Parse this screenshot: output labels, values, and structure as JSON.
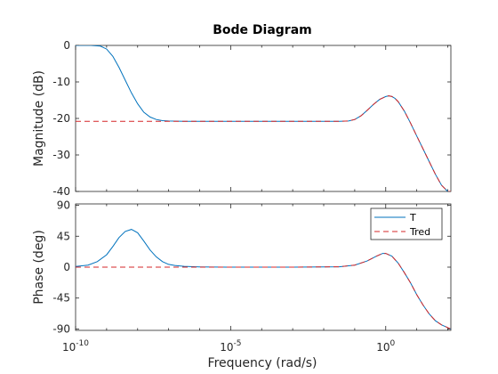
{
  "chart_data": {
    "type": "line",
    "title": "Bode Diagram",
    "xlabel": "Frequency  (rad/s)",
    "xscale": "log",
    "xlim_exp": [
      -10,
      2.1
    ],
    "x_ticks": [
      {
        "exp": -10,
        "base": "10",
        "sup": "-10"
      },
      {
        "exp": -5,
        "base": "10",
        "sup": "-5"
      },
      {
        "exp": 0,
        "base": "10",
        "sup": "0"
      }
    ],
    "legend": {
      "placement": "top-right",
      "entries": [
        "T",
        "Tred"
      ]
    },
    "grid": false,
    "colors": {
      "T": "#0072BD",
      "Tred": "#D62728"
    },
    "panels": [
      {
        "id": "magnitude",
        "ylabel": "Magnitude (dB)",
        "ylim": [
          -40,
          0
        ],
        "yticks": [
          0,
          -10,
          -20,
          -30,
          -40
        ],
        "series": [
          {
            "name": "T",
            "style": "solid",
            "x_exp": [
              -10,
              -9.5,
              -9.2,
              -9.0,
              -8.8,
              -8.6,
              -8.4,
              -8.2,
              -8.0,
              -7.8,
              -7.6,
              -7.4,
              -7.2,
              -7.0,
              -6.5,
              -5.0,
              -3.0,
              -1.5,
              -1.2,
              -1.0,
              -0.8,
              -0.6,
              -0.4,
              -0.2,
              0.0,
              0.1,
              0.2,
              0.3,
              0.4,
              0.6,
              0.8,
              1.0,
              1.2,
              1.4,
              1.6,
              1.8,
              2.0,
              2.1
            ],
            "y": [
              0,
              0,
              -0.2,
              -1.0,
              -3.0,
              -6.0,
              -9.5,
              -13.0,
              -16.0,
              -18.3,
              -19.6,
              -20.3,
              -20.6,
              -20.7,
              -20.8,
              -20.8,
              -20.8,
              -20.8,
              -20.7,
              -20.3,
              -19.3,
              -17.8,
              -16.2,
              -14.8,
              -14.0,
              -13.8,
              -14.0,
              -14.5,
              -15.4,
              -18.0,
              -21.3,
              -24.8,
              -28.3,
              -31.8,
              -35.3,
              -38.3,
              -40.0,
              -40.0
            ]
          },
          {
            "name": "Tred",
            "style": "dashed",
            "x_exp": [
              -10,
              -9.0,
              -8.0,
              -7.0,
              -5.0,
              -3.0,
              -1.5,
              -1.2,
              -1.0,
              -0.8,
              -0.6,
              -0.4,
              -0.2,
              0.0,
              0.1,
              0.2,
              0.3,
              0.4,
              0.6,
              0.8,
              1.0,
              1.2,
              1.4,
              1.6,
              1.8,
              2.0,
              2.1
            ],
            "y": [
              -20.8,
              -20.8,
              -20.8,
              -20.8,
              -20.8,
              -20.8,
              -20.8,
              -20.7,
              -20.3,
              -19.3,
              -17.8,
              -16.2,
              -14.8,
              -14.0,
              -13.8,
              -14.0,
              -14.5,
              -15.4,
              -18.0,
              -21.3,
              -24.8,
              -28.3,
              -31.8,
              -35.3,
              -38.3,
              -40.0,
              -40.0
            ]
          }
        ]
      },
      {
        "id": "phase",
        "ylabel": "Phase (deg)",
        "ylim": [
          -92,
          92
        ],
        "yticks": [
          90,
          45,
          0,
          -45,
          -90
        ],
        "series": [
          {
            "name": "T",
            "style": "solid",
            "x_exp": [
              -10,
              -9.6,
              -9.3,
              -9.0,
              -8.8,
              -8.6,
              -8.4,
              -8.2,
              -8.0,
              -7.8,
              -7.6,
              -7.4,
              -7.2,
              -7.0,
              -6.8,
              -6.5,
              -6.2,
              -6.0,
              -5.0,
              -3.0,
              -1.5,
              -1.0,
              -0.6,
              -0.3,
              -0.1,
              0.0,
              0.2,
              0.4,
              0.6,
              0.8,
              1.0,
              1.2,
              1.4,
              1.6,
              1.8,
              2.0,
              2.1
            ],
            "y": [
              1,
              3,
              8,
              18,
              30,
              43,
              52,
              55,
              50,
              38,
              25,
              15,
              8,
              4,
              2.5,
              1.2,
              0.6,
              0.4,
              0,
              0,
              0.5,
              3,
              9,
              16,
              20,
              20,
              16,
              6,
              -8,
              -23,
              -40,
              -55,
              -68,
              -78,
              -84,
              -88,
              -90
            ]
          },
          {
            "name": "Tred",
            "style": "dashed",
            "x_exp": [
              -10,
              -8.0,
              -6.0,
              -5.0,
              -3.0,
              -1.5,
              -1.0,
              -0.6,
              -0.3,
              -0.1,
              0.0,
              0.2,
              0.4,
              0.6,
              0.8,
              1.0,
              1.2,
              1.4,
              1.6,
              1.8,
              2.0,
              2.1
            ],
            "y": [
              0,
              0,
              0,
              0,
              0,
              0.5,
              3,
              9,
              16,
              20,
              20,
              16,
              6,
              -8,
              -23,
              -40,
              -55,
              -68,
              -78,
              -84,
              -88,
              -90
            ]
          }
        ]
      }
    ]
  }
}
